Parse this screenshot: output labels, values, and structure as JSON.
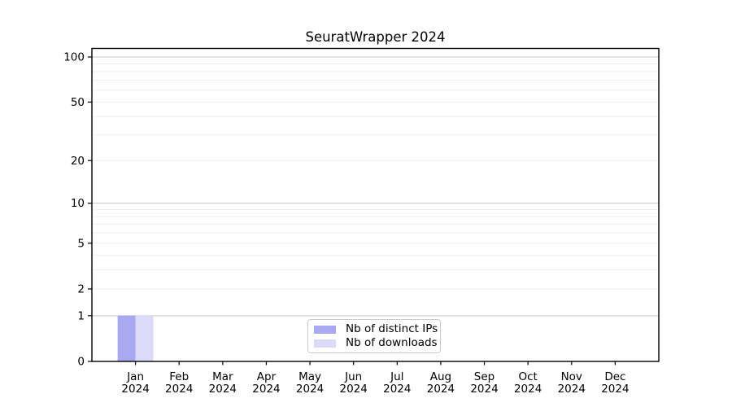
{
  "chart_data": {
    "type": "bar",
    "title": "SeuratWrapper 2024",
    "x_months": [
      "Jan",
      "Feb",
      "Mar",
      "Apr",
      "May",
      "Jun",
      "Jul",
      "Aug",
      "Sep",
      "Oct",
      "Nov",
      "Dec"
    ],
    "x_year": "2024",
    "categories": [
      "Jan 2024",
      "Feb 2024",
      "Mar 2024",
      "Apr 2024",
      "May 2024",
      "Jun 2024",
      "Jul 2024",
      "Aug 2024",
      "Sep 2024",
      "Oct 2024",
      "Nov 2024",
      "Dec 2024"
    ],
    "series": [
      {
        "name": "Nb of distinct IPs",
        "color": "#a9a9f2",
        "values": [
          1,
          0,
          0,
          0,
          0,
          0,
          0,
          0,
          0,
          0,
          0,
          0
        ]
      },
      {
        "name": "Nb of downloads",
        "color": "#dbdbf9",
        "values": [
          1,
          0,
          0,
          0,
          0,
          0,
          0,
          0,
          0,
          0,
          0,
          0
        ]
      }
    ],
    "y_scale": "log10(value+1)",
    "ylim": [
      0,
      115
    ],
    "y_tick_values": [
      0,
      1,
      2,
      5,
      10,
      20,
      50,
      100
    ],
    "gridline_values": [
      1,
      2,
      3,
      4,
      5,
      6,
      7,
      8,
      9,
      10,
      20,
      30,
      40,
      50,
      60,
      70,
      80,
      90,
      100
    ],
    "grid_emphasis_values": [
      1,
      10,
      100
    ],
    "grid_on": true,
    "legend_position": "lower center",
    "colors": {
      "axis": "#000000",
      "grid_major": "#c6c6c6",
      "grid_minor": "#eeeeee",
      "background": "#ffffff",
      "text": "#000000",
      "legend_border": "#cccccc"
    }
  }
}
